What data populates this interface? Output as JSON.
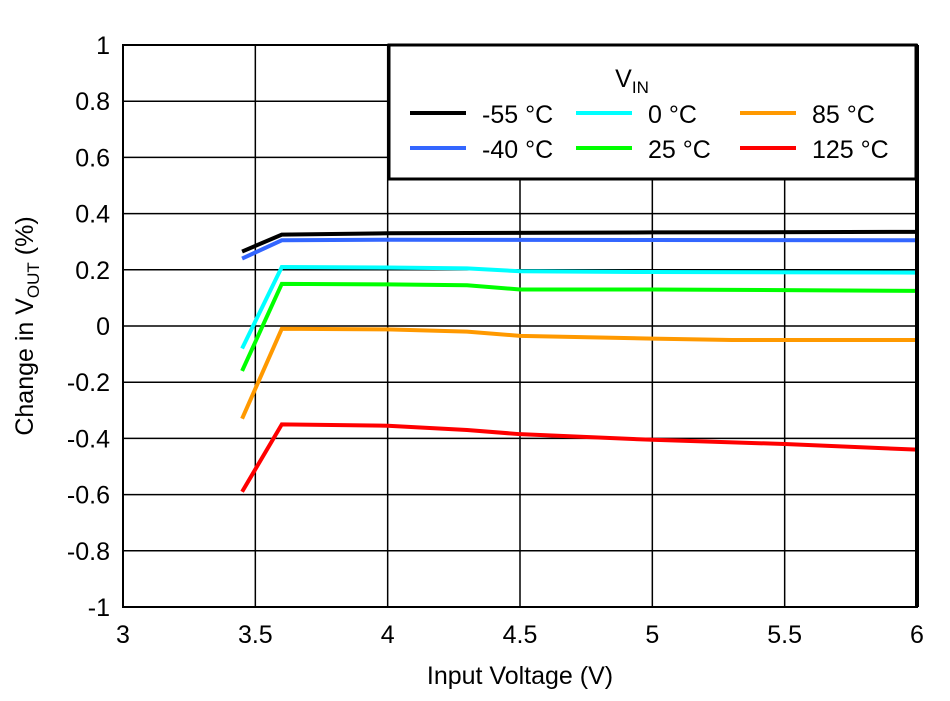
{
  "chart_data": {
    "type": "line",
    "xlabel": "Input Voltage (V)",
    "ylabel": "Change in V",
    "ylabel_sub": "OUT",
    "ylabel_suffix": " (%)",
    "xlim": [
      3,
      6
    ],
    "ylim": [
      -1,
      1
    ],
    "xticks": [
      "3",
      "3.5",
      "4",
      "4.5",
      "5",
      "5.5",
      "6"
    ],
    "yticks": [
      "1",
      "0.8",
      "0.6",
      "0.4",
      "0.2",
      "0",
      "-0.2",
      "-0.4",
      "-0.6",
      "-0.8",
      "-1"
    ],
    "grid": true,
    "legend": {
      "title": "V",
      "title_sub": "IN",
      "placement": "top-right"
    },
    "series": [
      {
        "name": "-55 °C",
        "color": "#000000",
        "x": [
          3.45,
          3.6,
          4.0,
          5.0,
          6.0
        ],
        "y": [
          0.265,
          0.325,
          0.33,
          0.333,
          0.335
        ]
      },
      {
        "name": "-40 °C",
        "color": "#3366ff",
        "x": [
          3.45,
          3.6,
          4.0,
          5.0,
          6.0
        ],
        "y": [
          0.24,
          0.305,
          0.307,
          0.306,
          0.305
        ]
      },
      {
        "name": "0 °C",
        "color": "#00ffff",
        "x": [
          3.45,
          3.6,
          4.0,
          4.3,
          4.5,
          5.0,
          6.0
        ],
        "y": [
          -0.08,
          0.21,
          0.208,
          0.205,
          0.195,
          0.192,
          0.19
        ]
      },
      {
        "name": "25 °C",
        "color": "#00ff00",
        "x": [
          3.45,
          3.6,
          4.0,
          4.3,
          4.5,
          5.0,
          6.0
        ],
        "y": [
          -0.16,
          0.15,
          0.148,
          0.145,
          0.13,
          0.13,
          0.125
        ]
      },
      {
        "name": "85 °C",
        "color": "#ff9900",
        "x": [
          3.45,
          3.6,
          4.0,
          4.3,
          4.5,
          5.0,
          5.3,
          6.0
        ],
        "y": [
          -0.33,
          -0.01,
          -0.012,
          -0.02,
          -0.035,
          -0.045,
          -0.05,
          -0.05
        ]
      },
      {
        "name": "125 °C",
        "color": "#ff0000",
        "x": [
          3.45,
          3.6,
          4.0,
          4.3,
          4.5,
          5.0,
          5.5,
          6.0
        ],
        "y": [
          -0.59,
          -0.35,
          -0.355,
          -0.37,
          -0.385,
          -0.405,
          -0.42,
          -0.44
        ]
      }
    ]
  }
}
